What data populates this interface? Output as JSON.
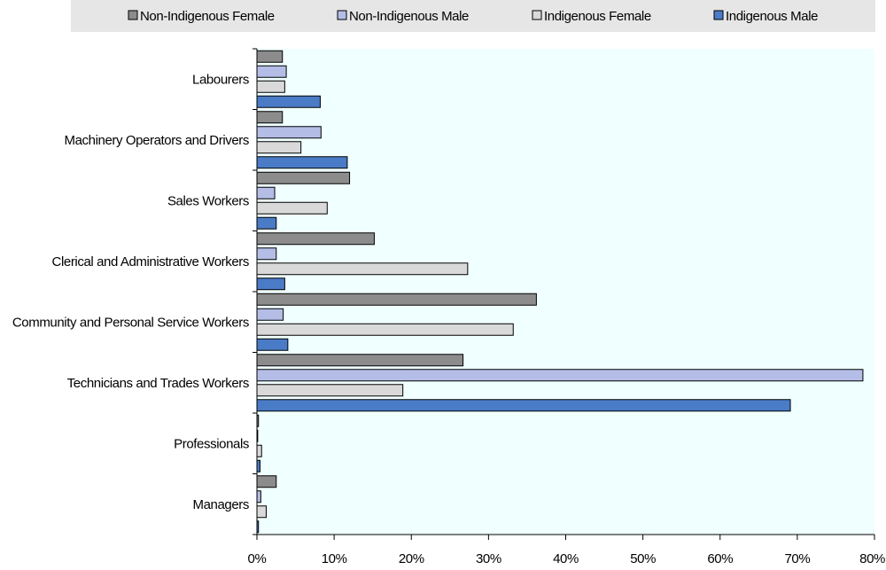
{
  "chart_data": {
    "type": "bar",
    "orientation": "horizontal",
    "categories": [
      "Labourers",
      "Machinery Operators and Drivers",
      "Sales Workers",
      "Clerical and Administrative Workers",
      "Community and Personal Service Workers",
      "Technicians and Trades Workers",
      "Professionals",
      "Managers"
    ],
    "series": [
      {
        "name": "Non-Indigenous Female",
        "color": "#8c8c8c",
        "values": [
          3.3,
          3.3,
          12.0,
          15.2,
          36.2,
          26.7,
          0.2,
          2.5
        ]
      },
      {
        "name": "Non-Indigenous Male",
        "color": "#b4bde6",
        "values": [
          3.8,
          8.3,
          2.3,
          2.5,
          3.4,
          78.5,
          0.1,
          0.5
        ]
      },
      {
        "name": "Indigenous Female",
        "color": "#d9d9d9",
        "values": [
          3.6,
          5.7,
          9.1,
          27.3,
          33.2,
          18.9,
          0.6,
          1.2
        ]
      },
      {
        "name": "Indigenous Male",
        "color": "#4a7bc6",
        "values": [
          8.2,
          11.7,
          2.5,
          3.6,
          4.0,
          69.1,
          0.4,
          0.2
        ]
      }
    ],
    "x_ticks": [
      "0%",
      "10%",
      "20%",
      "30%",
      "40%",
      "50%",
      "60%",
      "70%",
      "80%"
    ],
    "xlim": [
      0,
      80
    ],
    "legend_position": "top",
    "plot_background": "#f0ffff",
    "grid": false
  }
}
